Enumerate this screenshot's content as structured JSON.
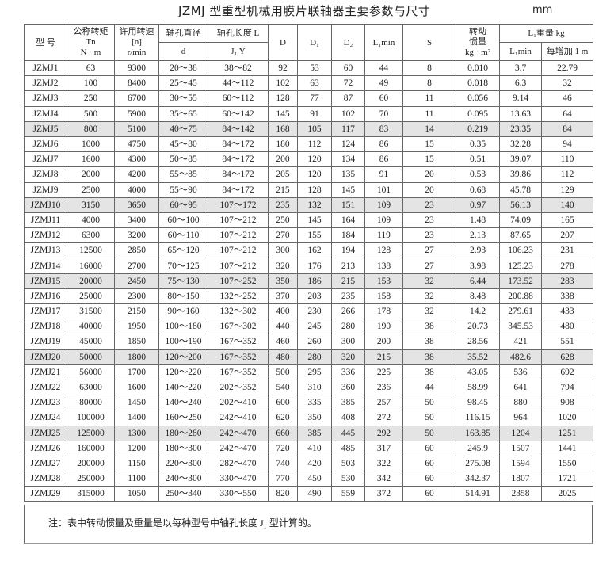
{
  "title": "JZMJ 型重型机械用膜片联轴器主要参数与尺寸",
  "unit": "mm",
  "header": {
    "model": "型  号",
    "torque": [
      "公称转矩",
      "Tn",
      "N · m"
    ],
    "speed": [
      "许用转速",
      "[n]",
      "r/min"
    ],
    "bore_d": [
      "轴孔直径",
      "d"
    ],
    "bore_l": [
      "轴孔长度 L",
      "J₁   Y"
    ],
    "D": "D",
    "D1": "D₁",
    "D2": "D₂",
    "L1min": "L₁min",
    "S": "S",
    "inertia": [
      "转动",
      "惯量",
      "kg · m²"
    ],
    "weight": [
      "L₁重量  kg",
      "L₁min",
      "每增加 1 m"
    ]
  },
  "table": {
    "rows": [
      [
        "JZMJ1",
        "63",
        "9300",
        "20～38",
        "38～82",
        "92",
        "53",
        "60",
        "44",
        "8",
        "0.010",
        "3.7",
        "22.79"
      ],
      [
        "JZMJ2",
        "100",
        "8400",
        "25～45",
        "44～112",
        "102",
        "63",
        "72",
        "49",
        "8",
        "0.018",
        "6.3",
        "32"
      ],
      [
        "JZMJ3",
        "250",
        "6700",
        "30～55",
        "60～112",
        "128",
        "77",
        "87",
        "60",
        "11",
        "0.056",
        "9.14",
        "46"
      ],
      [
        "JZMJ4",
        "500",
        "5900",
        "35～65",
        "60～142",
        "145",
        "91",
        "102",
        "70",
        "11",
        "0.095",
        "13.63",
        "64"
      ],
      [
        "JZMJ5",
        "800",
        "5100",
        "40～75",
        "84～142",
        "168",
        "105",
        "117",
        "83",
        "14",
        "0.219",
        "23.35",
        "84"
      ],
      [
        "JZMJ6",
        "1000",
        "4750",
        "45～80",
        "84～172",
        "180",
        "112",
        "124",
        "86",
        "15",
        "0.35",
        "32.28",
        "94"
      ],
      [
        "JZMJ7",
        "1600",
        "4300",
        "50～85",
        "84～172",
        "200",
        "120",
        "134",
        "86",
        "15",
        "0.51",
        "39.07",
        "110"
      ],
      [
        "JZMJ8",
        "2000",
        "4200",
        "55～85",
        "84～172",
        "205",
        "120",
        "135",
        "91",
        "20",
        "0.53",
        "39.86",
        "112"
      ],
      [
        "JZMJ9",
        "2500",
        "4000",
        "55～90",
        "84～172",
        "215",
        "128",
        "145",
        "101",
        "20",
        "0.68",
        "45.78",
        "129"
      ],
      [
        "JZMJ10",
        "3150",
        "3650",
        "60～95",
        "107～172",
        "235",
        "132",
        "151",
        "109",
        "23",
        "0.97",
        "56.13",
        "140"
      ],
      [
        "JZMJ11",
        "4000",
        "3400",
        "60～100",
        "107～212",
        "250",
        "145",
        "164",
        "109",
        "23",
        "1.48",
        "74.09",
        "165"
      ],
      [
        "JZMJ12",
        "6300",
        "3200",
        "60～110",
        "107～212",
        "270",
        "155",
        "184",
        "119",
        "23",
        "2.13",
        "87.65",
        "207"
      ],
      [
        "JZMJ13",
        "12500",
        "2850",
        "65～120",
        "107～212",
        "300",
        "162",
        "194",
        "128",
        "27",
        "2.93",
        "106.23",
        "231"
      ],
      [
        "JZMJ14",
        "16000",
        "2700",
        "70～125",
        "107～212",
        "320",
        "176",
        "213",
        "138",
        "27",
        "3.98",
        "125.23",
        "278"
      ],
      [
        "JZMJ15",
        "20000",
        "2450",
        "75～130",
        "107～252",
        "350",
        "186",
        "215",
        "153",
        "32",
        "6.44",
        "173.52",
        "283"
      ],
      [
        "JZMJ16",
        "25000",
        "2300",
        "80～150",
        "132～252",
        "370",
        "203",
        "235",
        "158",
        "32",
        "8.48",
        "200.88",
        "338"
      ],
      [
        "JZMJ17",
        "31500",
        "2150",
        "90～160",
        "132～302",
        "400",
        "230",
        "266",
        "178",
        "32",
        "14.2",
        "279.61",
        "433"
      ],
      [
        "JZMJ18",
        "40000",
        "1950",
        "100～180",
        "167～302",
        "440",
        "245",
        "280",
        "190",
        "38",
        "20.73",
        "345.53",
        "480"
      ],
      [
        "JZMJ19",
        "45000",
        "1850",
        "100～190",
        "167～352",
        "460",
        "260",
        "300",
        "200",
        "38",
        "28.56",
        "421",
        "551"
      ],
      [
        "JZMJ20",
        "50000",
        "1800",
        "120～200",
        "167～352",
        "480",
        "280",
        "320",
        "215",
        "38",
        "35.52",
        "482.6",
        "628"
      ],
      [
        "JZMJ21",
        "56000",
        "1700",
        "120～220",
        "167～352",
        "500",
        "295",
        "336",
        "225",
        "38",
        "43.05",
        "536",
        "692"
      ],
      [
        "JZMJ22",
        "63000",
        "1600",
        "140～220",
        "202～352",
        "540",
        "310",
        "360",
        "236",
        "44",
        "58.99",
        "641",
        "794"
      ],
      [
        "JZMJ23",
        "80000",
        "1450",
        "140～240",
        "202～410",
        "600",
        "335",
        "385",
        "257",
        "50",
        "98.45",
        "880",
        "908"
      ],
      [
        "JZMJ24",
        "100000",
        "1400",
        "160～250",
        "242～410",
        "620",
        "350",
        "408",
        "272",
        "50",
        "116.15",
        "964",
        "1020"
      ],
      [
        "JZMJ25",
        "125000",
        "1300",
        "180～280",
        "242～470",
        "660",
        "385",
        "445",
        "292",
        "50",
        "163.85",
        "1204",
        "1251"
      ],
      [
        "JZMJ26",
        "160000",
        "1200",
        "180～300",
        "242～470",
        "720",
        "410",
        "485",
        "317",
        "60",
        "245.9",
        "1507",
        "1441"
      ],
      [
        "JZMJ27",
        "200000",
        "1150",
        "220～300",
        "282～470",
        "740",
        "420",
        "503",
        "322",
        "60",
        "275.08",
        "1594",
        "1550"
      ],
      [
        "JZMJ28",
        "250000",
        "1100",
        "240～300",
        "330～470",
        "770",
        "450",
        "530",
        "342",
        "60",
        "342.37",
        "1807",
        "1721"
      ],
      [
        "JZMJ29",
        "315000",
        "1050",
        "250～340",
        "330～550",
        "820",
        "490",
        "559",
        "372",
        "60",
        "514.91",
        "2358",
        "2025"
      ]
    ]
  },
  "note": "注：表中转动惯量及重量是以每种型号中轴孔长度 J₁ 型计算的。"
}
